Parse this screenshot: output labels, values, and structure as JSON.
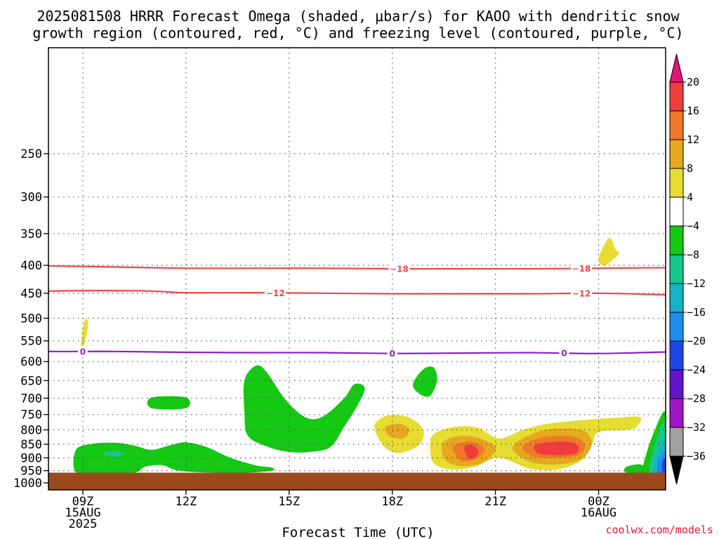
{
  "header": {
    "title_line1": "2025081508 HRRR Forecast Omega (shaded, μbar/s) for KAOO with dendritic snow",
    "title_line2": "growth region (contoured, red, °C) and freezing level (contoured, purple, °C)"
  },
  "chart_data": {
    "type": "heatmap",
    "xlabel": "Forecast Time (UTC)",
    "x_ticks": [
      {
        "hour": 9,
        "lines": [
          "09Z",
          "15AUG",
          "2025"
        ]
      },
      {
        "hour": 12,
        "lines": [
          "12Z"
        ]
      },
      {
        "hour": 15,
        "lines": [
          "15Z"
        ]
      },
      {
        "hour": 18,
        "lines": [
          "18Z"
        ]
      },
      {
        "hour": 21,
        "lines": [
          "21Z"
        ]
      },
      {
        "hour": 24,
        "lines": [
          "00Z",
          "16AUG"
        ]
      }
    ],
    "xlim": [
      8.0,
      25.95
    ],
    "y_scale": "log",
    "ylim": [
      1030,
      160
    ],
    "y_ticks": [
      250,
      300,
      350,
      400,
      450,
      500,
      550,
      600,
      650,
      700,
      750,
      800,
      850,
      900,
      950,
      1000
    ],
    "grid": true,
    "surface_pressure_mb": 958,
    "surface_color": "#9c4a1c",
    "colorbar": {
      "ticks": [
        "20",
        "16",
        "12",
        "8",
        "4",
        "−4",
        "−8",
        "−12",
        "−16",
        "−20",
        "−24",
        "−28",
        "−32",
        "−36"
      ],
      "colors_top_to_bottom": [
        "#e8137a",
        "#f03c3c",
        "#f07828",
        "#e6a81e",
        "#e6dc32",
        "#ffffff",
        "#14c814",
        "#14c88c",
        "#14b4c8",
        "#1e8cf0",
        "#1e46e6",
        "#6414c8",
        "#a014c8",
        "#a0a0a0",
        "#000000"
      ]
    },
    "snow_growth_contours": {
      "color": "#f04646",
      "series": [
        {
          "label": "−18",
          "label_hours": [
            18.2,
            23.5
          ],
          "points": [
            [
              8.0,
              401
            ],
            [
              10,
              403
            ],
            [
              12,
              405
            ],
            [
              14,
              405
            ],
            [
              16,
              405
            ],
            [
              18,
              406
            ],
            [
              20,
              406
            ],
            [
              22,
              406
            ],
            [
              24,
              405
            ],
            [
              26,
              404
            ]
          ]
        },
        {
          "label": "−12",
          "label_hours": [
            14.6,
            23.5
          ],
          "points": [
            [
              8.0,
              446
            ],
            [
              9.5,
              445
            ],
            [
              11,
              446
            ],
            [
              12,
              449
            ],
            [
              14,
              449
            ],
            [
              16,
              450
            ],
            [
              18,
              451
            ],
            [
              20,
              451
            ],
            [
              22,
              451
            ],
            [
              24,
              450
            ],
            [
              26,
              453
            ]
          ]
        }
      ]
    },
    "freezing_level_contour": {
      "color": "#8c1ec8",
      "label": "0",
      "label_hours": [
        9.0,
        18.0,
        23.0
      ],
      "points": [
        [
          8.0,
          575
        ],
        [
          9,
          575
        ],
        [
          10,
          575
        ],
        [
          11,
          576
        ],
        [
          12,
          577
        ],
        [
          14,
          578
        ],
        [
          16,
          578
        ],
        [
          18,
          580
        ],
        [
          20,
          579
        ],
        [
          22,
          578
        ],
        [
          24,
          580
        ],
        [
          26,
          576
        ]
      ]
    },
    "omega_regions": [
      {
        "value": -6,
        "points": [
          [
            8.8,
            870
          ],
          [
            9.3,
            848
          ],
          [
            10.0,
            845
          ],
          [
            10.5,
            855
          ],
          [
            11.0,
            870
          ],
          [
            11.5,
            855
          ],
          [
            12.0,
            843
          ],
          [
            12.6,
            860
          ],
          [
            13.3,
            900
          ],
          [
            14.0,
            928
          ],
          [
            14.5,
            938
          ],
          [
            14.5,
            950
          ],
          [
            13.8,
            958
          ],
          [
            12.8,
            958
          ],
          [
            11.8,
            950
          ],
          [
            11.3,
            928
          ],
          [
            10.8,
            935
          ],
          [
            10.5,
            958
          ],
          [
            9.5,
            958
          ],
          [
            8.8,
            958
          ]
        ]
      },
      {
        "value": -10,
        "points": [
          [
            9.6,
            880
          ],
          [
            9.9,
            875
          ],
          [
            10.2,
            882
          ],
          [
            10.0,
            895
          ],
          [
            9.7,
            893
          ]
        ]
      },
      {
        "value": -6,
        "points": [
          [
            11.0,
            698
          ],
          [
            12.0,
            698
          ],
          [
            12.0,
            730
          ],
          [
            11.0,
            730
          ]
        ]
      },
      {
        "value": -6,
        "points": [
          [
            13.7,
            650
          ],
          [
            14.0,
            612
          ],
          [
            14.3,
            622
          ],
          [
            14.9,
            705
          ],
          [
            15.5,
            760
          ],
          [
            16.0,
            755
          ],
          [
            16.6,
            700
          ],
          [
            16.9,
            660
          ],
          [
            17.2,
            670
          ],
          [
            17.0,
            720
          ],
          [
            16.6,
            790
          ],
          [
            16.2,
            860
          ],
          [
            15.6,
            878
          ],
          [
            15.0,
            878
          ],
          [
            14.4,
            860
          ],
          [
            13.8,
            820
          ],
          [
            13.7,
            740
          ]
        ]
      },
      {
        "value": -6,
        "points": [
          [
            18.6,
            660
          ],
          [
            18.9,
            620
          ],
          [
            19.2,
            615
          ],
          [
            19.3,
            650
          ],
          [
            19.1,
            693
          ],
          [
            18.8,
            688
          ]
        ]
      },
      {
        "value": 6,
        "points": [
          [
            17.5,
            780
          ],
          [
            17.9,
            752
          ],
          [
            18.5,
            760
          ],
          [
            18.9,
            800
          ],
          [
            18.8,
            850
          ],
          [
            18.3,
            880
          ],
          [
            17.9,
            872
          ],
          [
            17.6,
            830
          ]
        ]
      },
      {
        "value": 10,
        "points": [
          [
            17.8,
            790
          ],
          [
            18.2,
            780
          ],
          [
            18.5,
            800
          ],
          [
            18.3,
            830
          ],
          [
            17.9,
            820
          ]
        ]
      },
      {
        "value": 6,
        "points": [
          [
            19.2,
            815
          ],
          [
            19.8,
            790
          ],
          [
            20.5,
            793
          ],
          [
            21.1,
            830
          ],
          [
            21.8,
            800
          ],
          [
            22.5,
            780
          ],
          [
            23.5,
            768
          ],
          [
            24.5,
            760
          ],
          [
            25.2,
            758
          ],
          [
            25.1,
            790
          ],
          [
            24.8,
            800
          ],
          [
            24.0,
            808
          ],
          [
            23.8,
            855
          ],
          [
            23.5,
            910
          ],
          [
            22.8,
            945
          ],
          [
            22.0,
            942
          ],
          [
            21.1,
            900
          ],
          [
            20.4,
            935
          ],
          [
            19.7,
            945
          ],
          [
            19.2,
            920
          ],
          [
            19.1,
            860
          ]
        ]
      },
      {
        "value": 10,
        "points": [
          [
            19.5,
            840
          ],
          [
            20.2,
            820
          ],
          [
            21.0,
            860
          ],
          [
            20.6,
            920
          ],
          [
            19.9,
            930
          ],
          [
            19.5,
            900
          ]
        ]
      },
      {
        "value": 10,
        "points": [
          [
            21.5,
            860
          ],
          [
            22.2,
            808
          ],
          [
            23.0,
            795
          ],
          [
            23.6,
            805
          ],
          [
            23.8,
            850
          ],
          [
            23.5,
            905
          ],
          [
            22.8,
            925
          ],
          [
            22.0,
            915
          ]
        ]
      },
      {
        "value": 14,
        "points": [
          [
            19.8,
            855
          ],
          [
            20.3,
            840
          ],
          [
            20.7,
            870
          ],
          [
            20.4,
            905
          ],
          [
            20.0,
            910
          ],
          [
            19.8,
            880
          ]
        ]
      },
      {
        "value": 14,
        "points": [
          [
            21.8,
            855
          ],
          [
            22.4,
            825
          ],
          [
            23.2,
            822
          ],
          [
            23.6,
            850
          ],
          [
            23.4,
            890
          ],
          [
            22.6,
            900
          ],
          [
            22.0,
            890
          ]
        ]
      },
      {
        "value": 18,
        "points": [
          [
            20.1,
            860
          ],
          [
            20.3,
            852
          ],
          [
            20.5,
            872
          ],
          [
            20.4,
            900
          ],
          [
            20.2,
            900
          ]
        ]
      },
      {
        "value": 18,
        "points": [
          [
            22.2,
            850
          ],
          [
            23.0,
            840
          ],
          [
            23.4,
            855
          ],
          [
            23.3,
            885
          ],
          [
            22.6,
            890
          ],
          [
            22.2,
            880
          ]
        ]
      },
      {
        "value": 6,
        "points": [
          [
            24.0,
            390
          ],
          [
            24.3,
            357
          ],
          [
            24.5,
            375
          ],
          [
            24.6,
            380
          ],
          [
            24.2,
            400
          ]
        ]
      },
      {
        "value": 6,
        "points": [
          [
            9.0,
            520
          ],
          [
            9.1,
            500
          ],
          [
            9.15,
            520
          ],
          [
            9.0,
            568
          ],
          [
            8.95,
            560
          ]
        ]
      },
      {
        "value": -6,
        "points": [
          [
            25.3,
            925
          ],
          [
            25.6,
            810
          ],
          [
            25.95,
            745
          ],
          [
            25.95,
            960
          ],
          [
            25.3,
            960
          ]
        ]
      },
      {
        "value": -10,
        "points": [
          [
            25.55,
            890
          ],
          [
            25.75,
            810
          ],
          [
            25.95,
            780
          ],
          [
            25.95,
            960
          ],
          [
            25.5,
            960
          ]
        ]
      },
      {
        "value": -14,
        "points": [
          [
            25.65,
            900
          ],
          [
            25.85,
            845
          ],
          [
            25.95,
            830
          ],
          [
            25.95,
            960
          ],
          [
            25.6,
            960
          ]
        ]
      },
      {
        "value": -18,
        "points": [
          [
            25.75,
            910
          ],
          [
            25.95,
            875
          ],
          [
            25.95,
            960
          ],
          [
            25.7,
            960
          ]
        ]
      },
      {
        "value": -22,
        "points": [
          [
            25.85,
            920
          ],
          [
            25.95,
            900
          ],
          [
            25.95,
            960
          ],
          [
            25.85,
            960
          ]
        ]
      },
      {
        "value": -6,
        "points": [
          [
            24.8,
            935
          ],
          [
            25.2,
            925
          ],
          [
            25.4,
            945
          ],
          [
            25.3,
            960
          ],
          [
            24.8,
            958
          ]
        ]
      }
    ]
  },
  "footer": {
    "credit": "coolwx.com/models"
  }
}
